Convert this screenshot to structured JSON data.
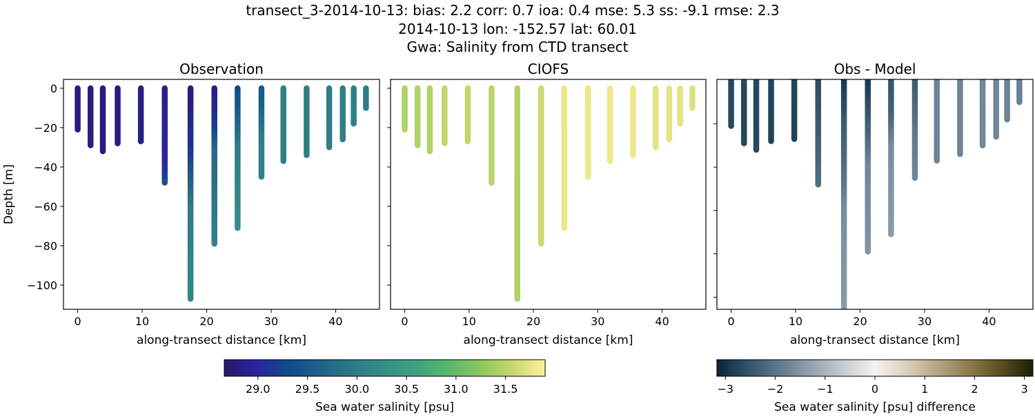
{
  "title_lines": [
    "transect_3-2014-10-13: bias: 2.2  corr: 0.7  ioa: 0.4  mse: 5.3  ss: -9.1  rmse: 2.3",
    "2014-10-13 lon: -152.57 lat: 60.01",
    "Gwa: Salinity from CTD transect"
  ],
  "chart_data": {
    "type": "scatter",
    "panels": [
      {
        "title": "Observation",
        "field": "obs",
        "xlabel": "along-transect distance [km]",
        "ylabel": "Depth [m]",
        "xlim": [
          -2.2,
          46.8
        ],
        "ylim": [
          -112.3,
          4.5
        ],
        "xticks": [
          0,
          10,
          20,
          30,
          40
        ],
        "yticks": [
          0,
          -20,
          -40,
          -60,
          -80,
          -100
        ],
        "show_ytick_labels": true,
        "colormap": "haline"
      },
      {
        "title": "CIOFS",
        "field": "model",
        "xlabel": "along-transect distance [km]",
        "ylabel": "",
        "xlim": [
          -2.2,
          46.8
        ],
        "ylim": [
          -112.3,
          4.5
        ],
        "xticks": [
          0,
          10,
          20,
          30,
          40
        ],
        "yticks": [
          0,
          -20,
          -40,
          -60,
          -80,
          -100
        ],
        "show_ytick_labels": false,
        "colormap": "haline"
      },
      {
        "title": "Obs - Model",
        "field": "diff",
        "xlabel": "along-transect distance [km]",
        "ylabel": "",
        "xlim": [
          -2.2,
          46.8
        ],
        "ylim": [
          -105.6,
          0.5
        ],
        "xticks": [
          0,
          10,
          20,
          30,
          40
        ],
        "yticks": [
          -20,
          -40,
          -60,
          -80,
          -100
        ],
        "show_ytick_labels": false,
        "colormap": "diff"
      }
    ],
    "stations": [
      {
        "x": 0.0,
        "depth": 21,
        "obs": [
          [
            0,
            28.8
          ],
          [
            21,
            28.8
          ]
        ],
        "model": [
          [
            0,
            31.45
          ],
          [
            21,
            31.45
          ]
        ],
        "diff": [
          [
            0,
            -2.7
          ],
          [
            21,
            -2.7
          ]
        ]
      },
      {
        "x": 2.0,
        "depth": 29,
        "obs": [
          [
            0,
            28.8
          ],
          [
            29,
            28.8
          ]
        ],
        "model": [
          [
            0,
            31.45
          ],
          [
            29,
            31.45
          ]
        ],
        "diff": [
          [
            0,
            -2.7
          ],
          [
            29,
            -2.7
          ]
        ]
      },
      {
        "x": 3.9,
        "depth": 32,
        "obs": [
          [
            0,
            28.8
          ],
          [
            32,
            28.8
          ]
        ],
        "model": [
          [
            0,
            31.45
          ],
          [
            32,
            31.45
          ]
        ],
        "diff": [
          [
            0,
            -2.7
          ],
          [
            32,
            -2.7
          ]
        ]
      },
      {
        "x": 6.2,
        "depth": 28,
        "obs": [
          [
            0,
            28.8
          ],
          [
            28,
            28.8
          ]
        ],
        "model": [
          [
            0,
            31.55
          ],
          [
            28,
            31.55
          ]
        ],
        "diff": [
          [
            0,
            -2.75
          ],
          [
            28,
            -2.75
          ]
        ]
      },
      {
        "x": 9.8,
        "depth": 27,
        "obs": [
          [
            0,
            28.8
          ],
          [
            27,
            28.8
          ]
        ],
        "model": [
          [
            0,
            31.55
          ],
          [
            27,
            31.55
          ]
        ],
        "diff": [
          [
            0,
            -2.75
          ],
          [
            27,
            -2.75
          ]
        ]
      },
      {
        "x": 13.5,
        "depth": 48,
        "obs": [
          [
            0,
            28.85
          ],
          [
            38,
            29.0
          ],
          [
            48,
            29.4
          ]
        ],
        "model": [
          [
            0,
            31.5
          ],
          [
            48,
            31.5
          ]
        ],
        "diff": [
          [
            0,
            -2.65
          ],
          [
            48,
            -2.1
          ]
        ]
      },
      {
        "x": 17.5,
        "depth": 107,
        "obs": [
          [
            0,
            28.75
          ],
          [
            30,
            29.1
          ],
          [
            45,
            29.6
          ],
          [
            60,
            30.0
          ],
          [
            107,
            30.2
          ]
        ],
        "model": [
          [
            0,
            31.45
          ],
          [
            107,
            31.45
          ]
        ],
        "diff": [
          [
            0,
            -2.9
          ],
          [
            20,
            -2.4
          ],
          [
            45,
            -2.0
          ],
          [
            60,
            -1.6
          ],
          [
            107,
            -1.4
          ]
        ]
      },
      {
        "x": 21.2,
        "depth": 79,
        "obs": [
          [
            0,
            28.8
          ],
          [
            20,
            29.2
          ],
          [
            30,
            29.7
          ],
          [
            79,
            30.1
          ]
        ],
        "model": [
          [
            0,
            31.6
          ],
          [
            79,
            31.6
          ]
        ],
        "diff": [
          [
            0,
            -2.9
          ],
          [
            25,
            -2.2
          ],
          [
            40,
            -1.7
          ],
          [
            79,
            -1.5
          ]
        ]
      },
      {
        "x": 24.8,
        "depth": 71,
        "obs": [
          [
            0,
            29.3
          ],
          [
            15,
            29.6
          ],
          [
            30,
            30.0
          ],
          [
            71,
            30.3
          ]
        ],
        "model": [
          [
            0,
            31.8
          ],
          [
            71,
            31.8
          ]
        ],
        "diff": [
          [
            0,
            -2.5
          ],
          [
            15,
            -2.3
          ],
          [
            30,
            -1.6
          ],
          [
            71,
            -1.4
          ]
        ]
      },
      {
        "x": 28.5,
        "depth": 45,
        "obs": [
          [
            0,
            29.5
          ],
          [
            8,
            29.6
          ],
          [
            25,
            30.0
          ],
          [
            45,
            30.1
          ]
        ],
        "model": [
          [
            0,
            31.8
          ],
          [
            45,
            31.8
          ]
        ],
        "diff": [
          [
            0,
            -2.4
          ],
          [
            25,
            -1.9
          ],
          [
            45,
            -1.7
          ]
        ]
      },
      {
        "x": 31.9,
        "depth": 37,
        "obs": [
          [
            0,
            30.05
          ],
          [
            37,
            30.05
          ]
        ],
        "model": [
          [
            0,
            31.8
          ],
          [
            37,
            31.8
          ]
        ],
        "diff": [
          [
            0,
            -1.75
          ],
          [
            37,
            -1.75
          ]
        ]
      },
      {
        "x": 35.5,
        "depth": 34,
        "obs": [
          [
            0,
            30.05
          ],
          [
            34,
            30.05
          ]
        ],
        "model": [
          [
            0,
            31.8
          ],
          [
            34,
            31.8
          ]
        ],
        "diff": [
          [
            0,
            -1.75
          ],
          [
            34,
            -1.75
          ]
        ]
      },
      {
        "x": 39.0,
        "depth": 30,
        "obs": [
          [
            0,
            30.05
          ],
          [
            30,
            30.05
          ]
        ],
        "model": [
          [
            0,
            31.75
          ],
          [
            30,
            31.75
          ]
        ],
        "diff": [
          [
            0,
            -1.7
          ],
          [
            30,
            -1.7
          ]
        ]
      },
      {
        "x": 41.1,
        "depth": 26,
        "obs": [
          [
            0,
            30.05
          ],
          [
            26,
            30.05
          ]
        ],
        "model": [
          [
            0,
            31.75
          ],
          [
            26,
            31.75
          ]
        ],
        "diff": [
          [
            0,
            -1.7
          ],
          [
            26,
            -1.7
          ]
        ]
      },
      {
        "x": 42.8,
        "depth": 18,
        "obs": [
          [
            0,
            30.05
          ],
          [
            18,
            30.05
          ]
        ],
        "model": [
          [
            0,
            31.75
          ],
          [
            18,
            31.75
          ]
        ],
        "diff": [
          [
            0,
            -1.75
          ],
          [
            18,
            -1.75
          ]
        ]
      },
      {
        "x": 44.7,
        "depth": 10,
        "obs": [
          [
            0,
            30.0
          ],
          [
            10,
            30.0
          ]
        ],
        "model": [
          [
            0,
            31.7
          ],
          [
            10,
            31.7
          ]
        ],
        "diff": [
          [
            0,
            -1.8
          ],
          [
            10,
            -1.8
          ]
        ]
      }
    ],
    "colorbars": [
      {
        "label": "Sea water salinity [psu]",
        "range": [
          28.66,
          31.9
        ],
        "ticks": [
          "29.0",
          "29.5",
          "30.0",
          "30.5",
          "31.0",
          "31.5"
        ],
        "colormap": "haline"
      },
      {
        "label": "Sea water salinity [psu] difference",
        "range": [
          -3.17,
          3.17
        ],
        "ticks": [
          "−3",
          "−2",
          "−1",
          "0",
          "1",
          "2",
          "3"
        ],
        "colormap": "diff"
      }
    ],
    "colormaps": {
      "haline": [
        "#29186b",
        "#2a23a0",
        "#0f4a8c",
        "#1f6288",
        "#2d7988",
        "#358f86",
        "#40a27f",
        "#58b76d",
        "#8cc85a",
        "#c8d86d",
        "#fdef9a"
      ],
      "diff": [
        "#08243b",
        "#33536c",
        "#5e7a8e",
        "#95a3af",
        "#c5cbd1",
        "#f5f2ef",
        "#ddd0bd",
        "#b5a383",
        "#8e7a4b",
        "#5a4d20",
        "#1c1f06"
      ]
    }
  }
}
